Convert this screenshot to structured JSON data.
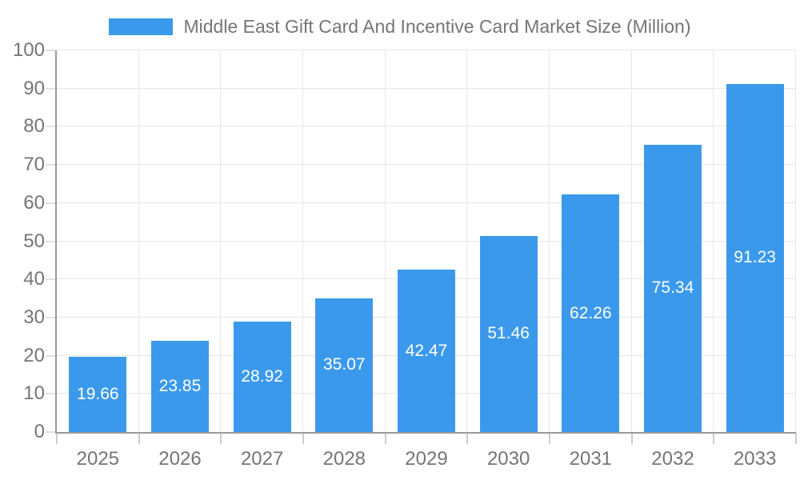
{
  "chart_data": {
    "type": "bar",
    "title": "Middle East Gift Card And Incentive Card Market Size (Million)",
    "categories": [
      "2025",
      "2026",
      "2027",
      "2028",
      "2029",
      "2030",
      "2031",
      "2032",
      "2033"
    ],
    "values": [
      19.66,
      23.85,
      28.92,
      35.07,
      42.47,
      51.46,
      62.26,
      75.34,
      91.23
    ],
    "value_labels": [
      "19.66",
      "23.85",
      "28.92",
      "35.07",
      "42.47",
      "51.46",
      "62.26",
      "75.34",
      "91.23"
    ],
    "xlabel": "",
    "ylabel": "",
    "ylim": [
      0,
      100
    ],
    "ytick_step": 10,
    "ytick_labels": [
      "0",
      "10",
      "20",
      "30",
      "40",
      "50",
      "60",
      "70",
      "80",
      "90",
      "100"
    ],
    "grid": true,
    "legend_position": "top-center",
    "colors": {
      "bar": "#3B99EC",
      "value_label": "#ffffff",
      "axis_line": "#999999",
      "gridline": "#e6e6e6",
      "tick_left": "#e0e0e0",
      "tick_bottom": "#cccccc",
      "tick_label": "#757575",
      "title_text": "#757575",
      "background": "#ffffff"
    }
  }
}
